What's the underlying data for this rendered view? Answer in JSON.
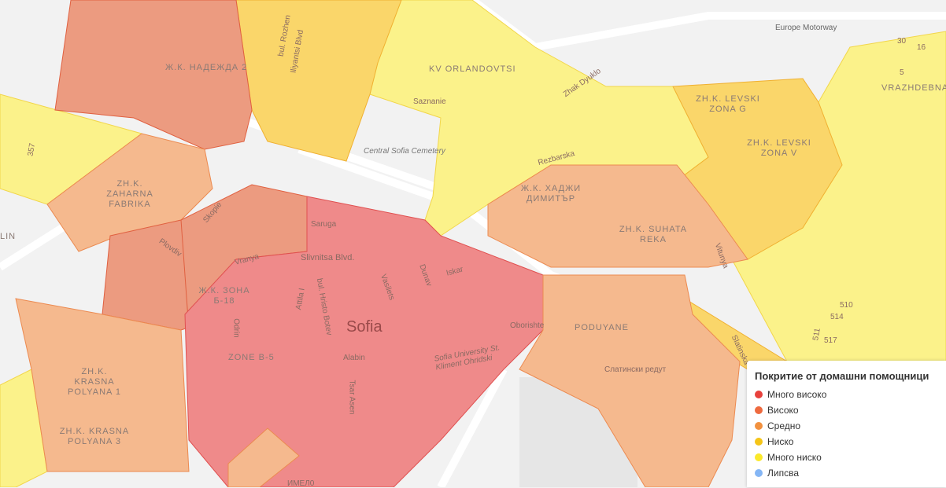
{
  "legend": {
    "title": "Покритие от домашни помощници",
    "items": [
      {
        "label": "Много високо",
        "color": "#e8413c"
      },
      {
        "label": "Високо",
        "color": "#ee6a3f"
      },
      {
        "label": "Средно",
        "color": "#f2913f"
      },
      {
        "label": "Ниско",
        "color": "#f5c518"
      },
      {
        "label": "Много ниско",
        "color": "#fbe92b"
      },
      {
        "label": "Липсва",
        "color": "#85b6f5"
      }
    ]
  },
  "map": {
    "city": "Sofia",
    "districts": [
      "Ж.К. НАДЕЖДА 2",
      "KV ORLANDOVTSI",
      "ZH.K. LEVSKI ZONA G",
      "ZH.K. LEVSKI ZONA V",
      "VRAZHDEBNA",
      "ZH.K. ZAHARNA FABRIKA",
      "Ж.К. ХАДЖИ ДИМИТЪР",
      "ZH.K. SUHATA REKA",
      "Ж.К. ЗОНА Б-18",
      "ZONE B-5",
      "ZH.K. KRASNA POLYANA 1",
      "ZH.K. KRASNA POLYANA 3",
      "PODUYANE",
      "LIN"
    ],
    "streets": [
      "bul. Rozhen",
      "Iliyantsi Blvd",
      "Europe Motorway",
      "Zhak Dyuklo",
      "Saznanie",
      "Central Sofia Cemetery",
      "Rezbarska",
      "Skopie",
      "Plovdiv",
      "Vranya",
      "Slivnitsa Blvd.",
      "Sofia University St. Kliment Ohridski",
      "Oborishte",
      "Alabin",
      "Tsar Asen",
      "Odrin",
      "bul. Hristo Botev",
      "Attila I",
      "Vasilets",
      "Dunav",
      "Iskar",
      "Saruga",
      "Slatinska",
      "Слатински редут",
      "Vitunya",
      "357",
      "16",
      "30",
      "5",
      "510",
      "514",
      "511",
      "517",
      "ИМЕЛ0"
    ]
  }
}
